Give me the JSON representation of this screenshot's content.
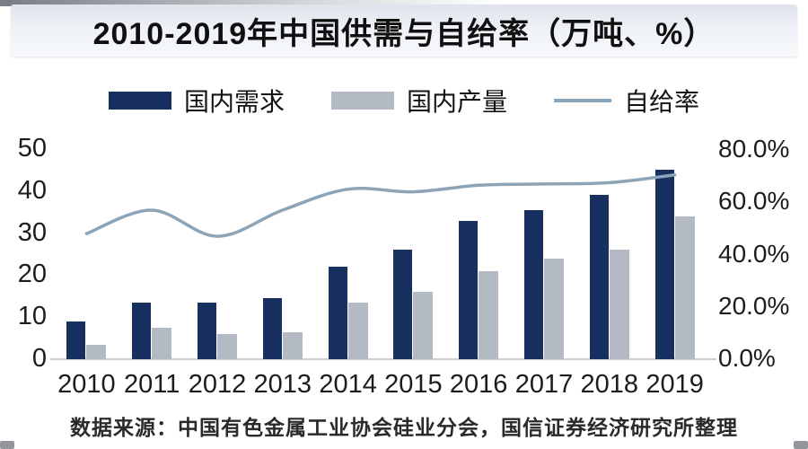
{
  "title": "2010-2019年中国供需与自给率（万吨、%）",
  "source_note": "数据来源：中国有色金属工业协会硅业分会，国信证券经济研究所整理",
  "colors": {
    "demand_bar": "#17305f",
    "production_bar": "#b3bac4",
    "rate_line": "#8ca4b8",
    "banner_bg": "#e7ebf2",
    "axis_text": "#1c1c1c"
  },
  "chart_data": {
    "type": "bar+line",
    "title": "2010-2019年中国供需与自给率（万吨、%）",
    "categories": [
      "2010",
      "2011",
      "2012",
      "2013",
      "2014",
      "2015",
      "2016",
      "2017",
      "2018",
      "2019"
    ],
    "series": [
      {
        "name": "国内需求",
        "type": "bar",
        "axis": "left",
        "unit": "万吨",
        "color": "#17305f",
        "values": [
          9,
          13.5,
          13.5,
          14.5,
          22,
          26,
          33,
          35.5,
          39,
          45
        ]
      },
      {
        "name": "国内产量",
        "type": "bar",
        "axis": "left",
        "unit": "万吨",
        "color": "#b3bac4",
        "values": [
          3.5,
          7.5,
          6,
          6.5,
          13.5,
          16,
          21,
          24,
          26,
          34
        ]
      },
      {
        "name": "自给率",
        "type": "line",
        "axis": "right",
        "unit": "%",
        "color": "#8ca4b8",
        "values": [
          48,
          57,
          47,
          57,
          65,
          64,
          66.5,
          67,
          67.5,
          70.5
        ]
      }
    ],
    "left_axis": {
      "ticks": [
        0,
        10,
        20,
        30,
        40,
        50
      ],
      "range": [
        0,
        50
      ]
    },
    "right_axis": {
      "tick_labels": [
        "0.0%",
        "20.0%",
        "40.0%",
        "60.0%",
        "80.0%"
      ],
      "range": [
        0,
        80
      ]
    },
    "legend_position": "top",
    "grid": false
  }
}
